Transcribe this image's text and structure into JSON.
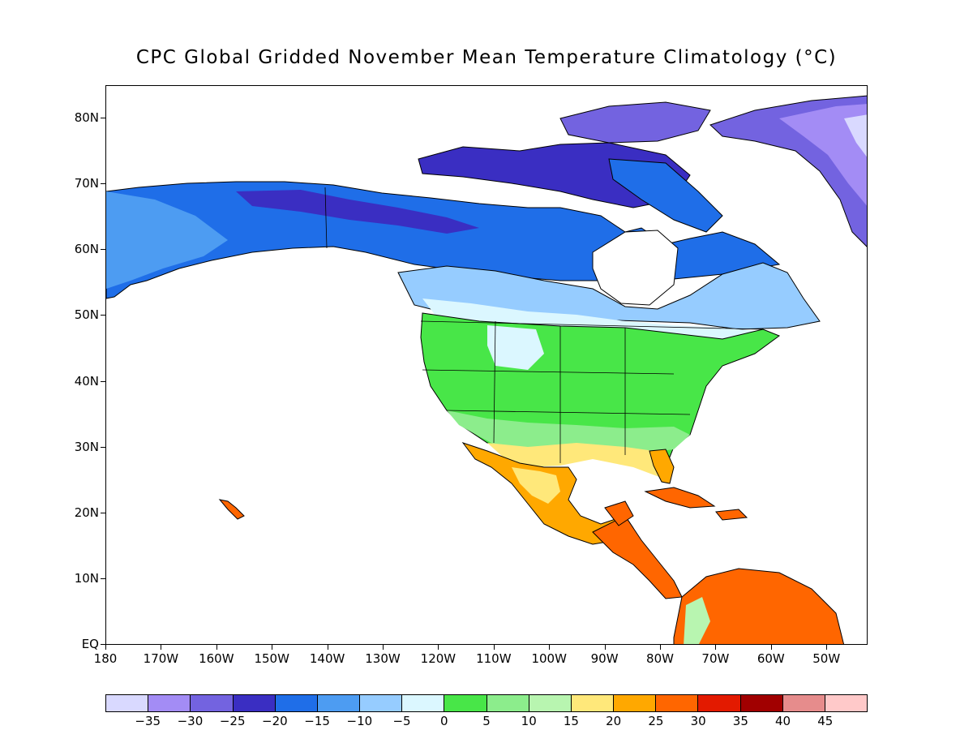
{
  "title": "CPC Global Gridded November Mean Temperature Climatology (°C)",
  "map": {
    "lat_labels": [
      "80N",
      "70N",
      "60N",
      "50N",
      "40N",
      "30N",
      "20N",
      "10N",
      "EQ"
    ],
    "lon_labels": [
      "180",
      "170W",
      "160W",
      "150W",
      "140W",
      "130W",
      "120W",
      "110W",
      "100W",
      "90W",
      "80W",
      "70W",
      "60W",
      "50W"
    ]
  },
  "colorbar": {
    "colors": [
      "#d9d9ff",
      "#a38cf5",
      "#7363e0",
      "#3a2ec2",
      "#1f6ee8",
      "#4d9cf2",
      "#96ccff",
      "#dbf7ff",
      "#48e648",
      "#8ced8c",
      "#b8f5b0",
      "#ffe87a",
      "#ffa800",
      "#ff6600",
      "#e31a00",
      "#a10000",
      "#e68c8c",
      "#ffc9c9"
    ],
    "labels": [
      "−35",
      "−30",
      "−25",
      "−20",
      "−15",
      "−10",
      "−5",
      "0",
      "5",
      "10",
      "15",
      "20",
      "25",
      "30",
      "35",
      "40",
      "45"
    ]
  }
}
